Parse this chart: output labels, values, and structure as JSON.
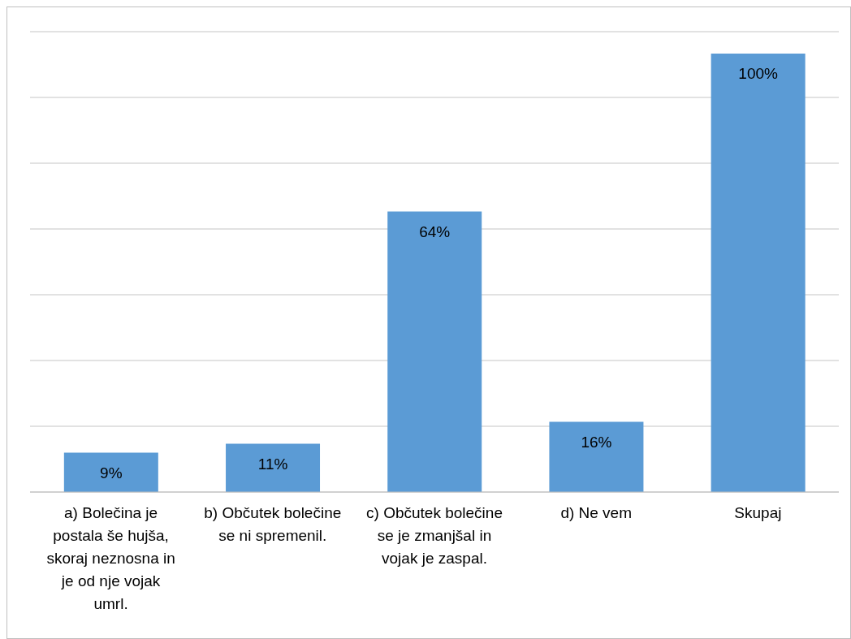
{
  "chart_data": {
    "type": "bar",
    "categories": [
      "a) Bolečina je postala še hujša, skoraj neznosna in je od nje vojak umrl.",
      "b) Občutek bolečine se ni spremenil.",
      "c) Občutek bolečine se je zmanjšal in vojak je zaspal.",
      "d) Ne vem",
      "Skupaj"
    ],
    "values": [
      9,
      11,
      64,
      16,
      100
    ],
    "value_labels": [
      "9%",
      "11%",
      "64%",
      "16%",
      "100%"
    ],
    "color": "#5b9bd5",
    "grid": "y",
    "tick_labels": "x",
    "legend": false
  }
}
